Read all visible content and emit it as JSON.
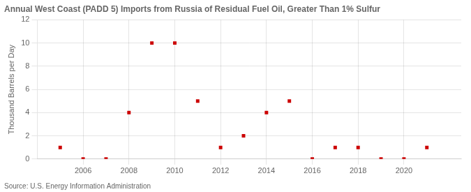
{
  "chart_data": {
    "type": "scatter",
    "title": "Annual West Coast (PADD 5) Imports from Russia of Residual Fuel Oil, Greater Than 1% Sulfur",
    "ylabel": "Thousand Barrels per Day",
    "source": "Source: U.S. Energy Information Administration",
    "x": [
      2005,
      2006,
      2007,
      2008,
      2009,
      2010,
      2011,
      2012,
      2013,
      2014,
      2015,
      2016,
      2017,
      2018,
      2019,
      2020,
      2021
    ],
    "values": [
      1,
      0,
      0,
      4,
      10,
      10,
      5,
      1,
      2,
      4,
      5,
      0,
      1,
      1,
      0,
      0,
      1
    ],
    "color": "#cc0000",
    "marker": "square",
    "xlim": [
      2004.0,
      2022.5
    ],
    "xticks": [
      2006,
      2008,
      2010,
      2012,
      2014,
      2016,
      2018,
      2020
    ],
    "ylim": [
      0,
      12
    ],
    "yticks": [
      0,
      2,
      4,
      6,
      8,
      10,
      12
    ],
    "grid": true
  }
}
